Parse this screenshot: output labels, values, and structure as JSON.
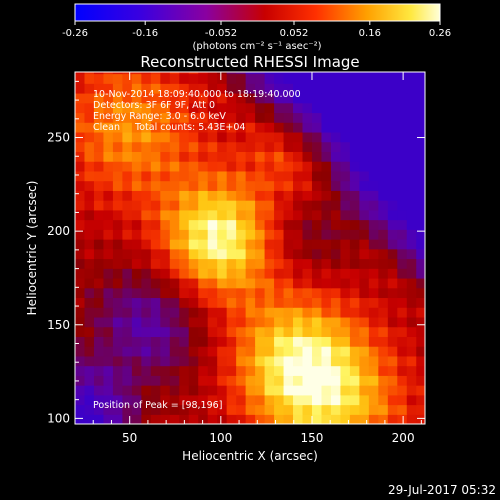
{
  "chart_data": {
    "type": "heatmap",
    "title": "Reconstructed RHESSI Image",
    "xlabel": "Heliocentric X (arcsec)",
    "ylabel": "Heliocentric Y (arcsec)",
    "xlim": [
      20,
      212
    ],
    "ylim": [
      97,
      285
    ],
    "x_ticks": [
      50,
      100,
      150,
      200
    ],
    "y_ticks": [
      100,
      150,
      200,
      250
    ],
    "colorbar": {
      "range": [
        -0.26,
        0.26
      ],
      "tick_labels": [
        "-0.26",
        "-0.16",
        "-0.052",
        "0.052",
        "0.16",
        "0.26"
      ],
      "unit_label": "(photons cm⁻² s⁻¹ asec⁻²)"
    },
    "annotations": [
      "10-Nov-2014 18:09:40.000 to 18:19:40.000",
      "Detectors: 3F 6F 9F, Att 0",
      "Energy Range: 3.0 - 6.0 keV",
      "Clean     Total counts: 5.43E+04"
    ],
    "peak_label": "Position of Peak = [98,196]",
    "peak": [
      98,
      196
    ],
    "secondary_peak": [
      142,
      130
    ],
    "footer_timestamp": "29-Jul-2017 05:32",
    "colors": {
      "background": "#000000",
      "frame": "#ffffff",
      "text": "#ffffff"
    }
  }
}
